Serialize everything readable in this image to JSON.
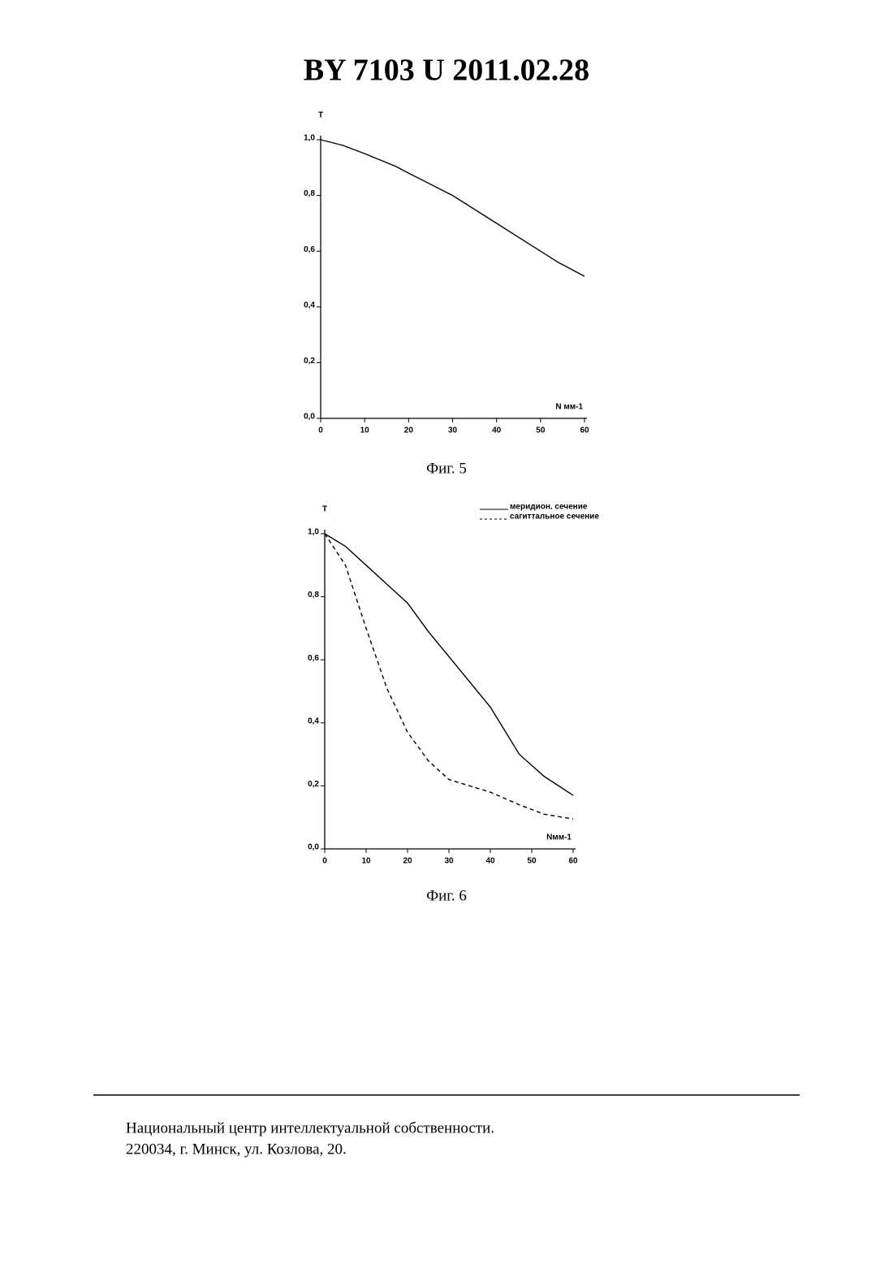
{
  "header": {
    "title": "BY 7103 U 2011.02.28"
  },
  "chart_data": [
    {
      "type": "line",
      "caption": "Фиг. 5",
      "y_label": "T",
      "x_label": "N мм-1",
      "x": [
        0,
        5,
        10,
        17,
        20,
        30,
        40,
        50,
        54,
        60
      ],
      "series": [
        {
          "color": "#000000",
          "dash": false,
          "values": [
            1.0,
            0.98,
            0.95,
            0.905,
            0.88,
            0.8,
            0.7,
            0.6,
            0.56,
            0.51
          ]
        }
      ],
      "xlim": [
        0,
        60
      ],
      "ylim": [
        0,
        1
      ],
      "xticks": [
        0,
        10,
        20,
        30,
        40,
        50,
        60
      ],
      "yticks": [
        {
          "value": 0,
          "label": "0,0"
        },
        {
          "value": 0.2,
          "label": "0,2"
        },
        {
          "value": 0.4,
          "label": "0,4"
        },
        {
          "value": 0.6,
          "label": "0,6"
        },
        {
          "value": 0.8,
          "label": "0,8"
        },
        {
          "value": 1,
          "label": "1,0"
        }
      ]
    },
    {
      "type": "line",
      "caption": "Фиг. 6",
      "y_label": "T",
      "x_label": "Nмм-1",
      "legend": "top-right",
      "x": [
        0,
        5,
        10,
        15,
        20,
        25,
        30,
        40,
        47,
        53,
        60
      ],
      "series": [
        {
          "name": "меридион. сечение",
          "color": "#000000",
          "dash": false,
          "values": [
            1.0,
            0.96,
            0.9,
            0.84,
            0.78,
            0.69,
            0.61,
            0.45,
            0.3,
            0.23,
            0.17
          ]
        },
        {
          "name": "сагиттальное сечение",
          "color": "#000000",
          "dash": true,
          "values": [
            1.0,
            0.9,
            0.7,
            0.51,
            0.37,
            0.28,
            0.22,
            0.18,
            0.14,
            0.11,
            0.095
          ]
        }
      ],
      "xlim": [
        0,
        60
      ],
      "ylim": [
        0,
        1
      ],
      "xticks": [
        0,
        10,
        20,
        30,
        40,
        50,
        60
      ],
      "yticks": [
        {
          "value": 0,
          "label": "0,0"
        },
        {
          "value": 0.2,
          "label": "0,2"
        },
        {
          "value": 0.4,
          "label": "0,4"
        },
        {
          "value": 0.6,
          "label": "0,6"
        },
        {
          "value": 0.8,
          "label": "0,8"
        },
        {
          "value": 1,
          "label": "1,0"
        }
      ]
    }
  ],
  "footer": {
    "lines": [
      "Национальный центр интеллектуальной собственности.",
      "220034, г. Минск, ул. Козлова, 20."
    ]
  }
}
